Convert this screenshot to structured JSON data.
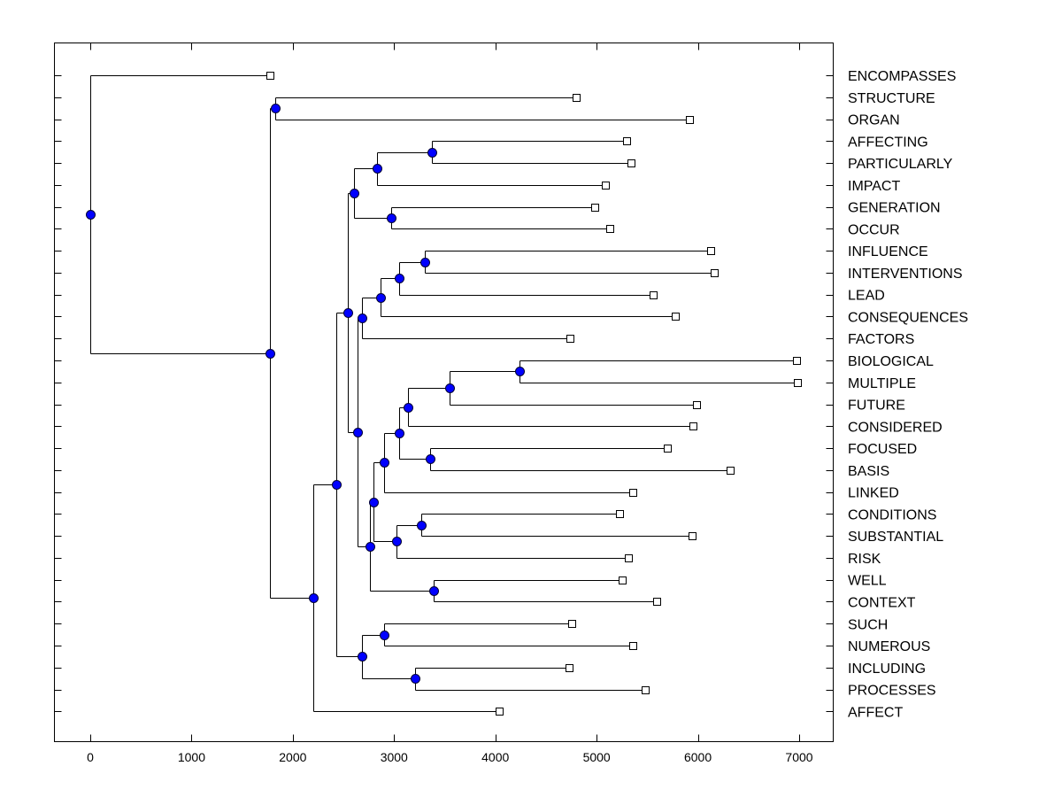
{
  "chart_data": {
    "type": "dendrogram",
    "orientation": "horizontal",
    "xlim": [
      -350,
      7350
    ],
    "x_ticks": [
      0,
      1000,
      2000,
      3000,
      4000,
      5000,
      6000,
      7000
    ],
    "colors": {
      "node": "#0000ff",
      "line": "#000000",
      "leaf_marker": "#ffffff"
    },
    "leaves": [
      {
        "label": "ENCOMPASSES",
        "value": 1770
      },
      {
        "label": "STRUCTURE",
        "value": 4800
      },
      {
        "label": "ORGAN",
        "value": 5920
      },
      {
        "label": "AFFECTING",
        "value": 5300
      },
      {
        "label": "PARTICULARLY",
        "value": 5340
      },
      {
        "label": "IMPACT",
        "value": 5090
      },
      {
        "label": "GENERATION",
        "value": 4980
      },
      {
        "label": "OCCUR",
        "value": 5130
      },
      {
        "label": "INFLUENCE",
        "value": 6130
      },
      {
        "label": "INTERVENTIONS",
        "value": 6160
      },
      {
        "label": "LEAD",
        "value": 5560
      },
      {
        "label": "CONSEQUENCES",
        "value": 5780
      },
      {
        "label": "FACTORS",
        "value": 4740
      },
      {
        "label": "BIOLOGICAL",
        "value": 6970
      },
      {
        "label": "MULTIPLE",
        "value": 6980
      },
      {
        "label": "FUTURE",
        "value": 5990
      },
      {
        "label": "CONSIDERED",
        "value": 5950
      },
      {
        "label": "FOCUSED",
        "value": 5700
      },
      {
        "label": "BASIS",
        "value": 6320
      },
      {
        "label": "LINKED",
        "value": 5360
      },
      {
        "label": "CONDITIONS",
        "value": 5230
      },
      {
        "label": "SUBSTANTIAL",
        "value": 5940
      },
      {
        "label": "RISK",
        "value": 5310
      },
      {
        "label": "WELL",
        "value": 5250
      },
      {
        "label": "CONTEXT",
        "value": 5590
      },
      {
        "label": "SUCH",
        "value": 4750
      },
      {
        "label": "NUMEROUS",
        "value": 5360
      },
      {
        "label": "INCLUDING",
        "value": 4730
      },
      {
        "label": "PROCESSES",
        "value": 5480
      },
      {
        "label": "AFFECT",
        "value": 4040
      }
    ],
    "merges": [
      {
        "id": "n1",
        "value": 1830,
        "children": [
          "STRUCTURE",
          "ORGAN"
        ]
      },
      {
        "id": "n2",
        "value": 3370,
        "children": [
          "AFFECTING",
          "PARTICULARLY"
        ]
      },
      {
        "id": "n3",
        "value": 2830,
        "children": [
          "n2",
          "IMPACT"
        ]
      },
      {
        "id": "n4",
        "value": 2970,
        "children": [
          "GENERATION",
          "OCCUR"
        ]
      },
      {
        "id": "n5",
        "value": 2600,
        "children": [
          "n3",
          "n4"
        ]
      },
      {
        "id": "n6",
        "value": 3300,
        "children": [
          "INFLUENCE",
          "INTERVENTIONS"
        ]
      },
      {
        "id": "n7",
        "value": 3050,
        "children": [
          "n6",
          "LEAD"
        ]
      },
      {
        "id": "n8",
        "value": 2870,
        "children": [
          "n7",
          "CONSEQUENCES"
        ]
      },
      {
        "id": "n9",
        "value": 2680,
        "children": [
          "n8",
          "FACTORS"
        ]
      },
      {
        "id": "n10",
        "value": 4240,
        "children": [
          "BIOLOGICAL",
          "MULTIPLE"
        ]
      },
      {
        "id": "n11",
        "value": 3550,
        "children": [
          "n10",
          "FUTURE"
        ]
      },
      {
        "id": "n12",
        "value": 3140,
        "children": [
          "n11",
          "CONSIDERED"
        ]
      },
      {
        "id": "n13",
        "value": 3360,
        "children": [
          "FOCUSED",
          "BASIS"
        ]
      },
      {
        "id": "n14",
        "value": 3050,
        "children": [
          "n12",
          "n13"
        ]
      },
      {
        "id": "n15",
        "value": 2900,
        "children": [
          "n14",
          "LINKED"
        ]
      },
      {
        "id": "n16",
        "value": 3270,
        "children": [
          "CONDITIONS",
          "SUBSTANTIAL"
        ]
      },
      {
        "id": "n17",
        "value": 3020,
        "children": [
          "n16",
          "RISK"
        ]
      },
      {
        "id": "n18",
        "value": 2800,
        "children": [
          "n15",
          "n17"
        ]
      },
      {
        "id": "n19",
        "value": 3390,
        "children": [
          "WELL",
          "CONTEXT"
        ]
      },
      {
        "id": "n20",
        "value": 2760,
        "children": [
          "n18",
          "n19"
        ]
      },
      {
        "id": "n21",
        "value": 2640,
        "children": [
          "n9",
          "n20"
        ]
      },
      {
        "id": "n22",
        "value": 2540,
        "children": [
          "n5",
          "n21"
        ]
      },
      {
        "id": "n23",
        "value": 2900,
        "children": [
          "SUCH",
          "NUMEROUS"
        ]
      },
      {
        "id": "n24",
        "value": 3210,
        "children": [
          "INCLUDING",
          "PROCESSES"
        ]
      },
      {
        "id": "n25",
        "value": 2680,
        "children": [
          "n23",
          "n24"
        ]
      },
      {
        "id": "n26",
        "value": 2430,
        "children": [
          "n22",
          "n25"
        ]
      },
      {
        "id": "n27",
        "value": 2200,
        "children": [
          "n26",
          "AFFECT"
        ]
      },
      {
        "id": "n28",
        "value": 1770,
        "children": [
          "n1",
          "n27"
        ]
      },
      {
        "id": "n29",
        "value": 0,
        "children": [
          "ENCOMPASSES",
          "n28"
        ]
      }
    ]
  }
}
